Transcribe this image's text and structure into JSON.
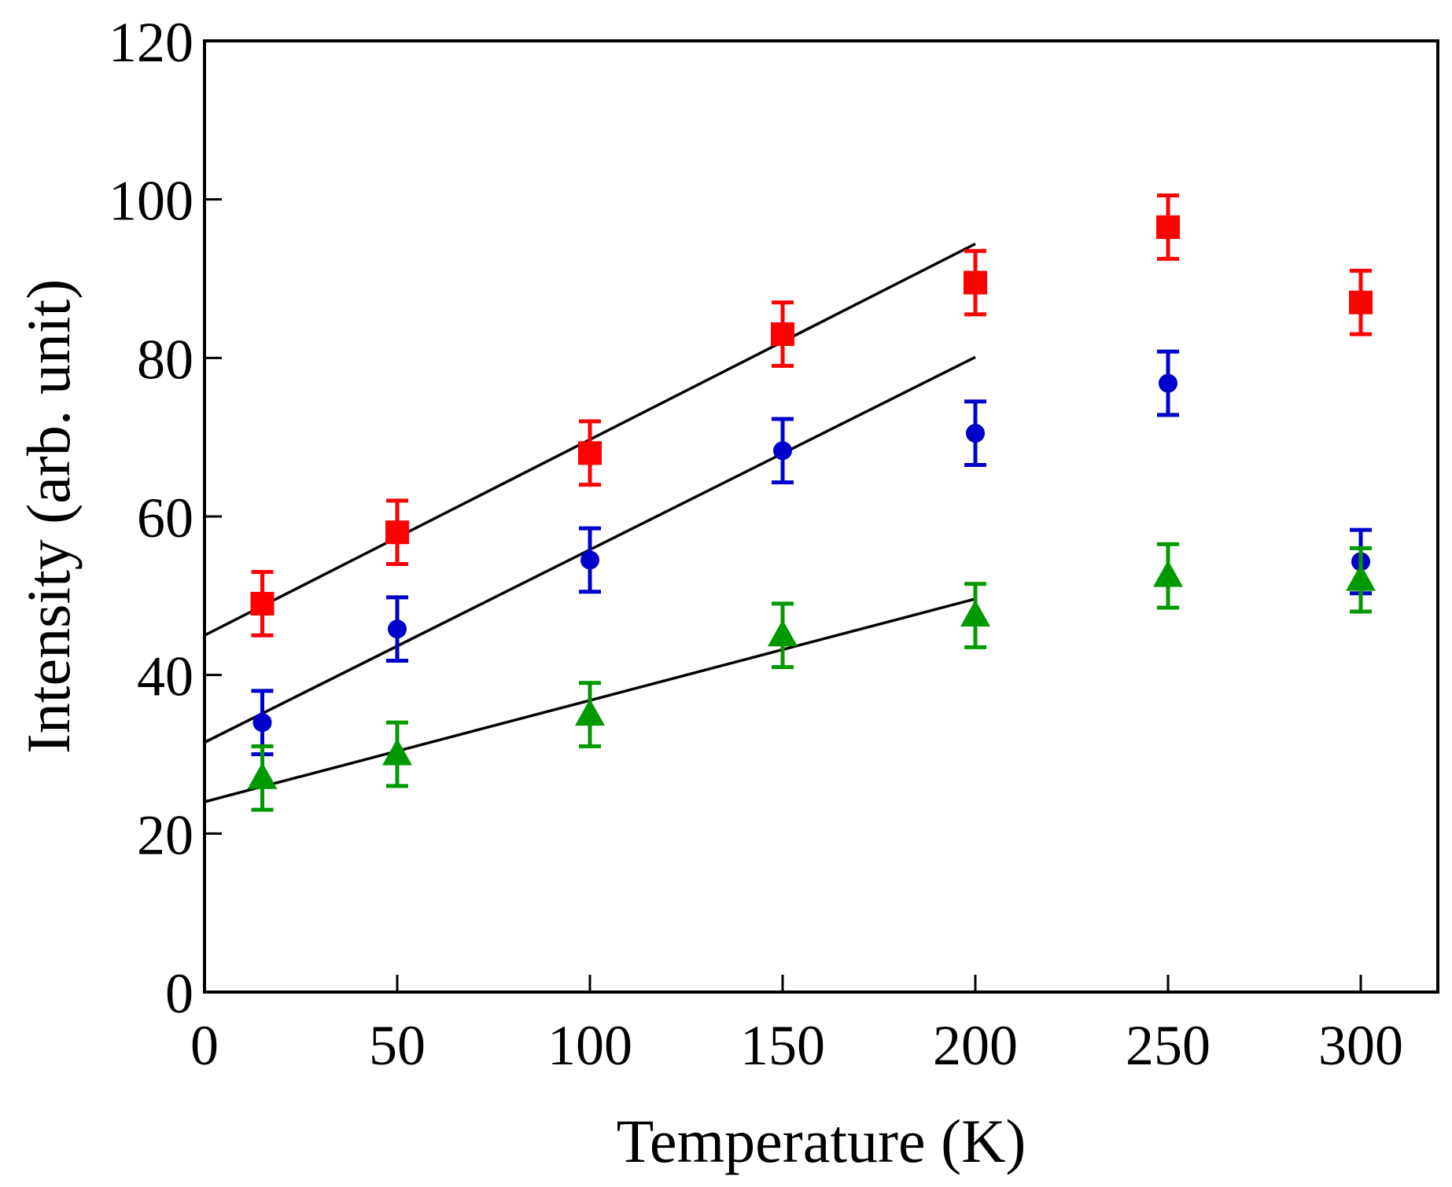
{
  "chart_data": {
    "type": "scatter",
    "title": "",
    "xlabel": "Temperature (K)",
    "ylabel": "Intensity (arb. unit)",
    "xlim": [
      0,
      320
    ],
    "ylim": [
      0,
      120
    ],
    "xticks": [
      0,
      50,
      100,
      150,
      200,
      250,
      300
    ],
    "yticks": [
      0,
      20,
      40,
      60,
      80,
      100,
      120
    ],
    "x": [
      15,
      50,
      100,
      150,
      200,
      250,
      300
    ],
    "series": [
      {
        "name": "squares",
        "marker": "square",
        "color": "#ff0000",
        "values": [
          49,
          58,
          68,
          83,
          89.5,
          96.5,
          87
        ],
        "errors": [
          4,
          4,
          4,
          4,
          4,
          4,
          4
        ],
        "fit": {
          "intercept": 45,
          "slope": 0.247,
          "x_start": 0,
          "x_end": 200
        }
      },
      {
        "name": "circles",
        "marker": "circle",
        "color": "#0000cc",
        "values": [
          34,
          45.8,
          54.5,
          68.3,
          70.5,
          76.8,
          54.3
        ],
        "errors": [
          4,
          4,
          4,
          4,
          4,
          4,
          4
        ],
        "fit": {
          "intercept": 31.5,
          "slope": 0.243,
          "x_start": 0,
          "x_end": 200
        }
      },
      {
        "name": "triangles",
        "marker": "triangle",
        "color": "#009900",
        "values": [
          27,
          30,
          35,
          45,
          47.5,
          52.5,
          52
        ],
        "errors": [
          4,
          4,
          4,
          4,
          4,
          4,
          4
        ],
        "fit": {
          "intercept": 24,
          "slope": 0.128,
          "x_start": 0,
          "x_end": 200
        }
      }
    ]
  }
}
